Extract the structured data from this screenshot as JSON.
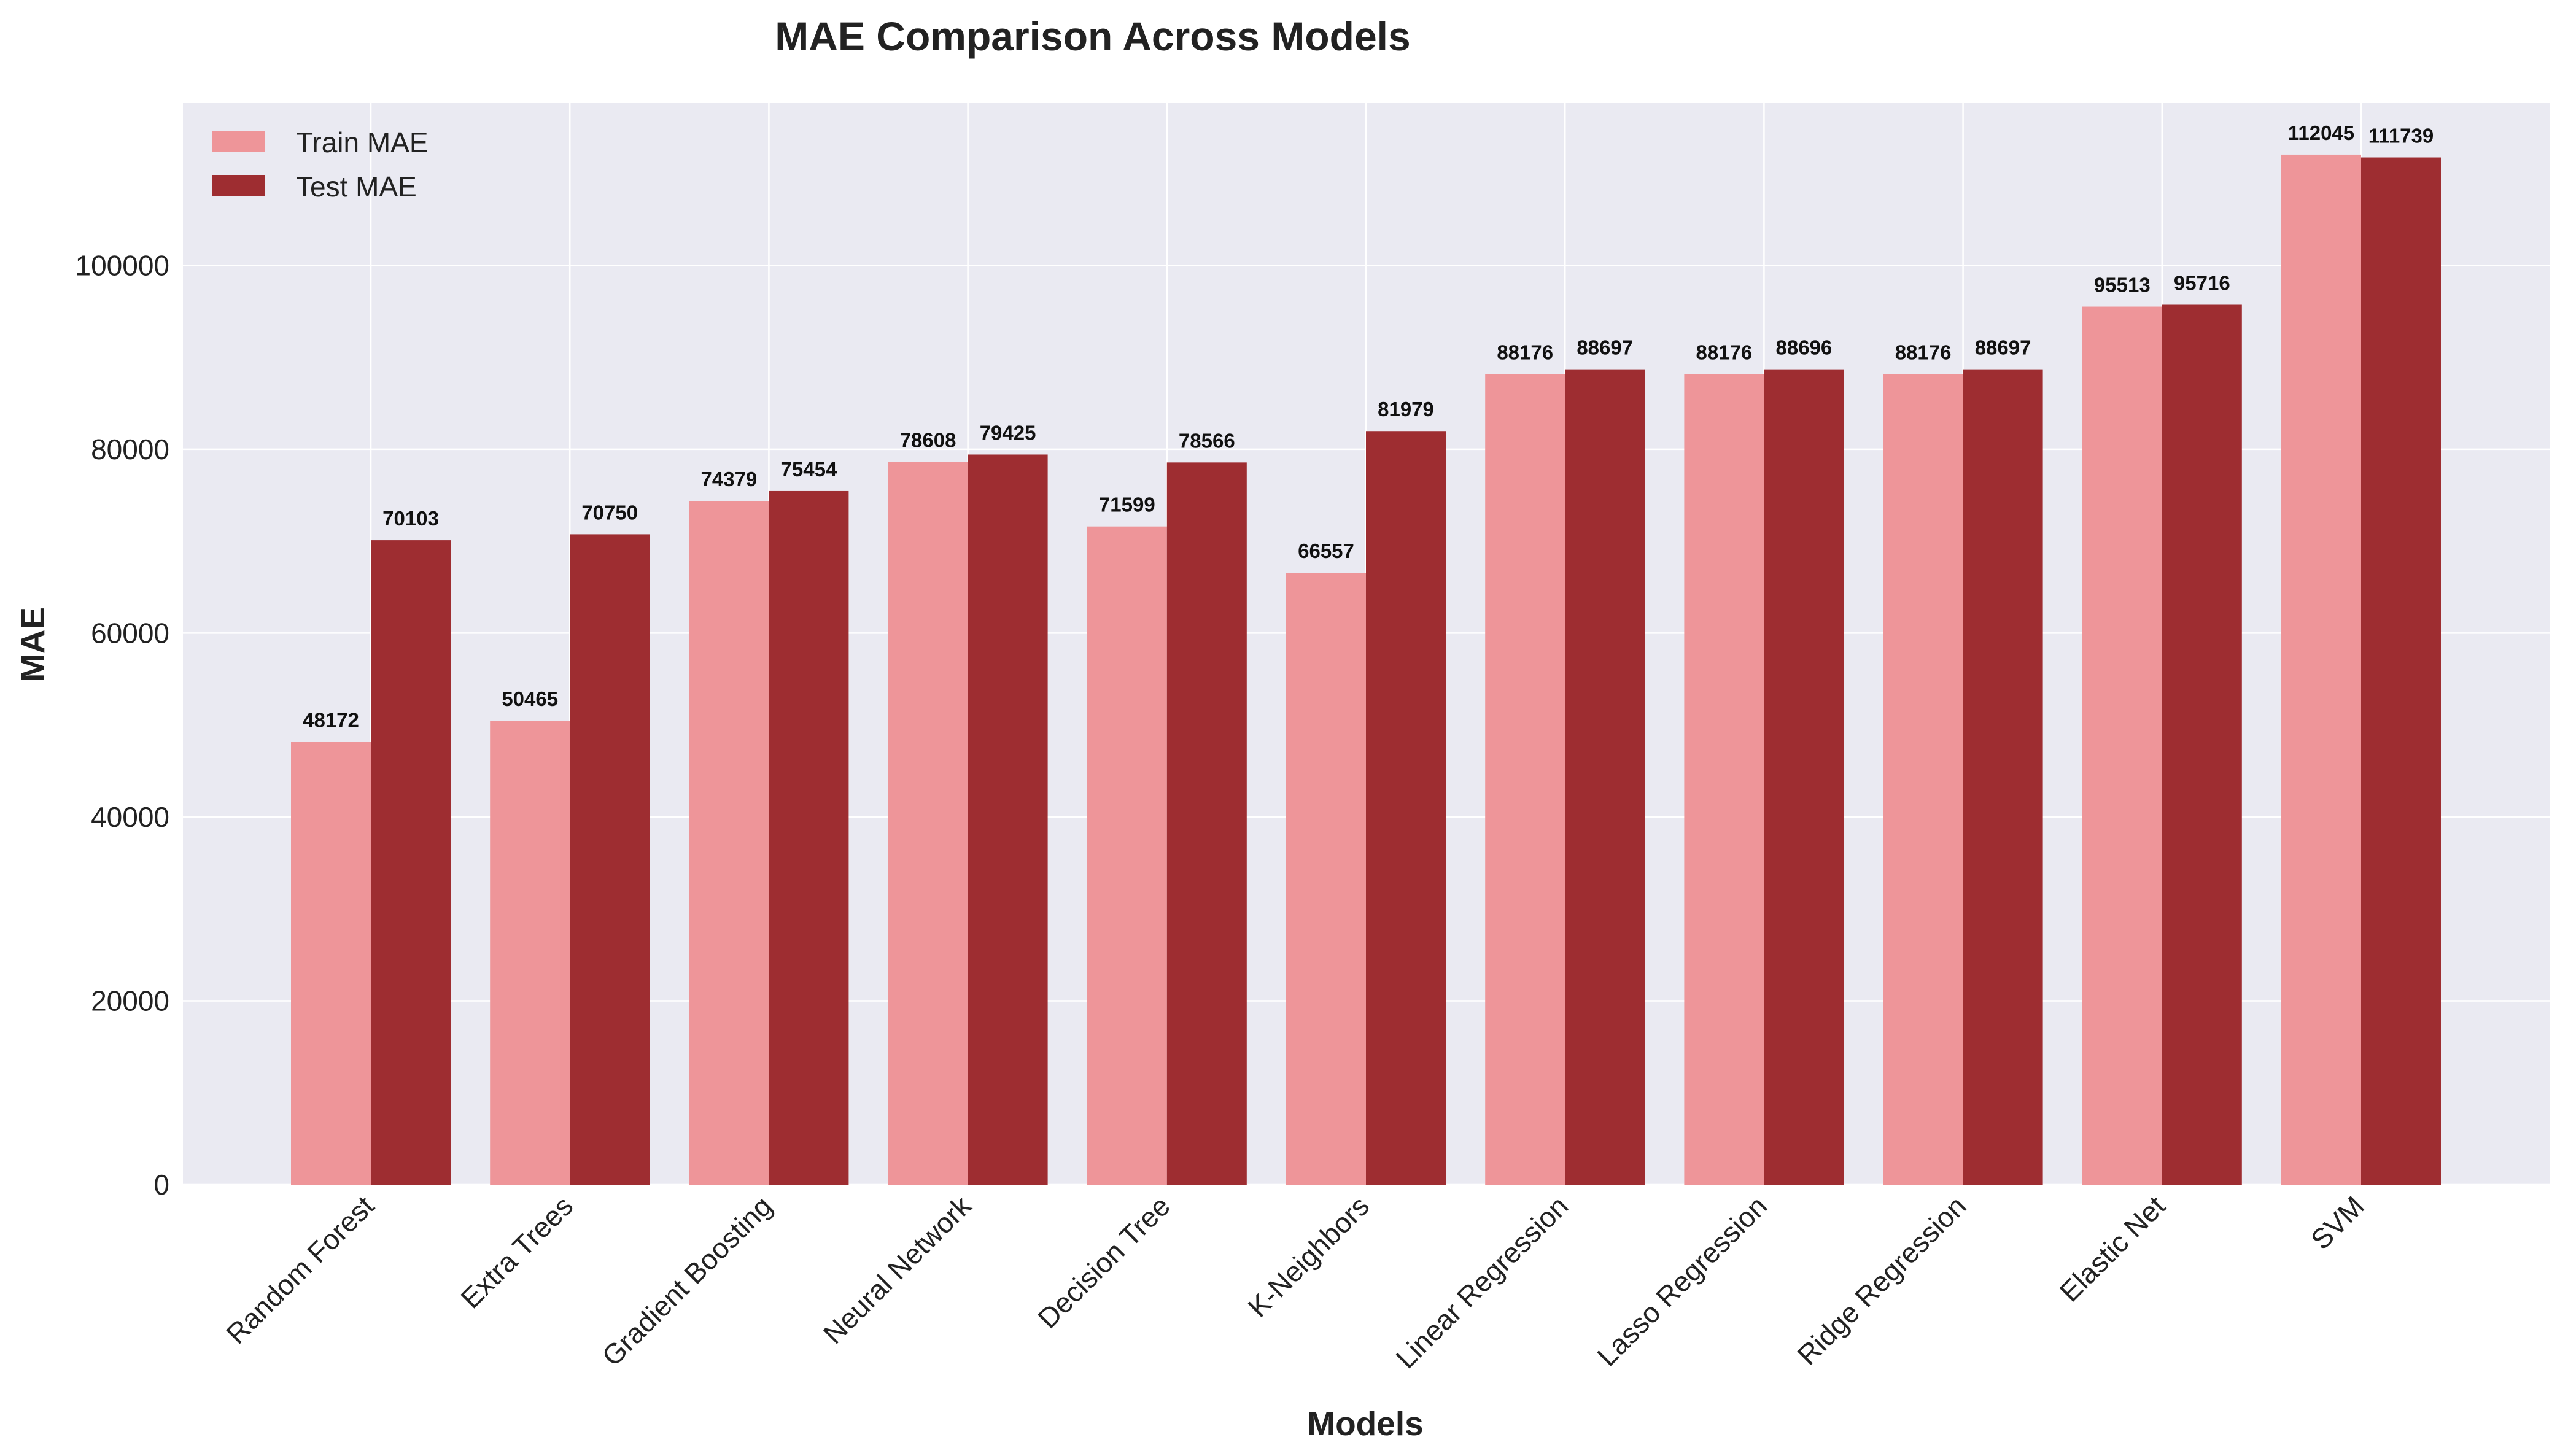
{
  "chart_data": {
    "type": "bar",
    "title": "MAE Comparison Across Models",
    "xlabel": "Models",
    "ylabel": "MAE",
    "categories": [
      "Random Forest",
      "Extra Trees",
      "Gradient Boosting",
      "Neural Network",
      "Decision Tree",
      "K-Neighbors",
      "Linear Regression",
      "Lasso Regression",
      "Ridge Regression",
      "Elastic Net",
      "SVM"
    ],
    "series": [
      {
        "name": "Train MAE",
        "color": "#ee9599",
        "values": [
          48172,
          50465,
          74379,
          78608,
          71599,
          66557,
          88176,
          88176,
          88176,
          95513,
          112045
        ]
      },
      {
        "name": "Test MAE",
        "color": "#9e2d31",
        "values": [
          70103,
          70750,
          75454,
          79425,
          78566,
          81979,
          88697,
          88696,
          88697,
          95716,
          111739
        ]
      }
    ],
    "ylim": [
      0,
      117650
    ],
    "yticks": [
      "0",
      "20000",
      "40000",
      "60000",
      "80000",
      "100000"
    ],
    "grid": true,
    "legend": "top-left",
    "background": "#eaeaf2"
  }
}
